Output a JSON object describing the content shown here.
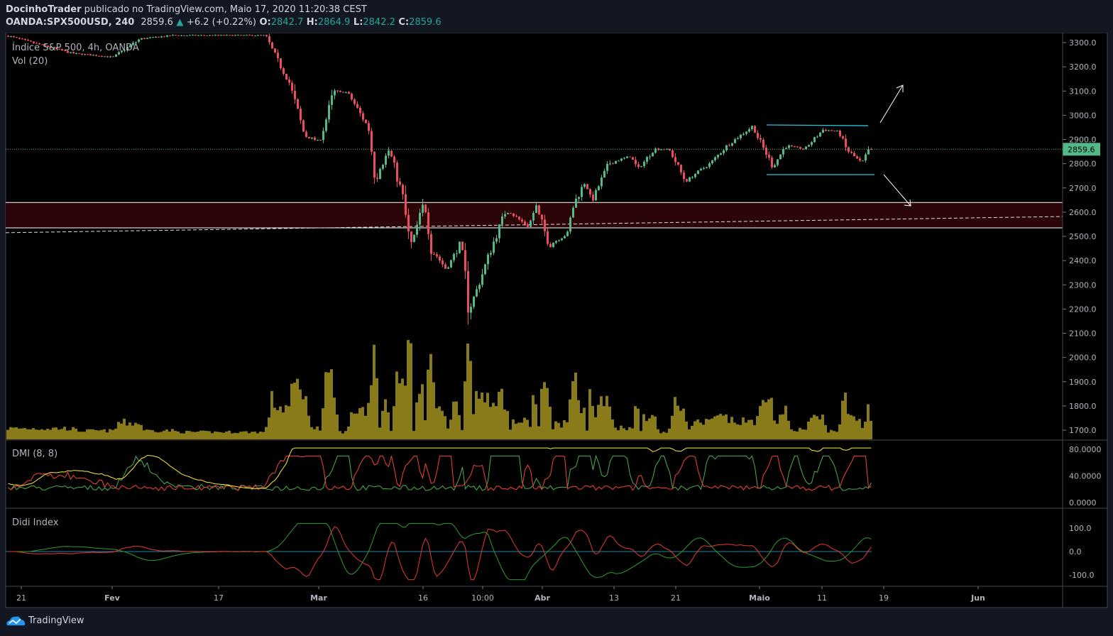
{
  "header": {
    "author": "DocinhoTrader",
    "published": "publicado no TradingView.com, Maio 17, 2020 11:20:38 CEST",
    "symbol": "OANDA:SPX500USD, 240",
    "last": "2859.6",
    "change": "+6.2 (+0.22%)",
    "o_label": "O:",
    "o": "2842.7",
    "h_label": "H:",
    "h": "2864.9",
    "l_label": "L:",
    "l": "2842.2",
    "c_label": "C:",
    "c": "2859.6"
  },
  "brand": "TradingView",
  "colors": {
    "up": "#53b987",
    "down": "#eb4d5c",
    "volume": "#8a7b1a",
    "plus_di": "#4caf50",
    "minus_di": "#f44336",
    "adx": "#ffeb3b",
    "didi_fast": "#e53935",
    "didi_slow": "#2e9e2e",
    "didi_base": "#2a7fa6",
    "channel": "#26c6da",
    "zone": "#2b0508"
  },
  "chart_data": [
    {
      "type": "candlestick",
      "title": "Índice S&P 500, 4h, OANDA",
      "volume_label": "Vol (20)",
      "y_ticks": [
        3300,
        3200,
        3100,
        3000,
        2900,
        2800,
        2700,
        2600,
        2500,
        2400,
        2300,
        2200,
        2100,
        2000,
        1900,
        1800,
        1700
      ],
      "ylim": [
        1690,
        3340
      ],
      "last_price": 2859.6,
      "last_price_label": "2859.6",
      "x_ticks": [
        "21",
        "Fev",
        "17",
        "Mar",
        "16",
        "10:00",
        "Abr",
        "13",
        "21",
        "Maio",
        "11",
        "19",
        "Jun"
      ],
      "close_path": [
        [
          "2020-01-19",
          3330
        ],
        [
          "2020-01-27",
          3256
        ],
        [
          "2020-02-01",
          3240
        ],
        [
          "2020-02-05",
          3315
        ],
        [
          "2020-02-10",
          3330
        ],
        [
          "2020-02-23",
          3330
        ],
        [
          "2020-02-24",
          3256
        ],
        [
          "2020-02-26",
          3139
        ],
        [
          "2020-02-28",
          2919
        ],
        [
          "2020-03-01",
          2890
        ],
        [
          "2020-03-03",
          3095
        ],
        [
          "2020-03-05",
          3095
        ],
        [
          "2020-03-08",
          2948
        ],
        [
          "2020-03-09",
          2743
        ],
        [
          "2020-03-11",
          2860
        ],
        [
          "2020-03-13",
          2655
        ],
        [
          "2020-03-14",
          2450
        ],
        [
          "2020-03-16",
          2640
        ],
        [
          "2020-03-17",
          2450
        ],
        [
          "2020-03-19",
          2362
        ],
        [
          "2020-03-21",
          2480
        ],
        [
          "2020-03-22",
          2201
        ],
        [
          "2020-03-23",
          2274
        ],
        [
          "2020-03-25",
          2450
        ],
        [
          "2020-03-27",
          2611
        ],
        [
          "2020-03-30",
          2540
        ],
        [
          "2020-03-31",
          2626
        ],
        [
          "2020-04-02",
          2465
        ],
        [
          "2020-04-05",
          2510
        ],
        [
          "2020-04-06",
          2626
        ],
        [
          "2020-04-08",
          2729
        ],
        [
          "2020-04-09",
          2640
        ],
        [
          "2020-04-12",
          2802
        ],
        [
          "2020-04-15",
          2831
        ],
        [
          "2020-04-16",
          2775
        ],
        [
          "2020-04-18",
          2860
        ],
        [
          "2020-04-20",
          2860
        ],
        [
          "2020-04-22",
          2729
        ],
        [
          "2020-04-25",
          2802
        ],
        [
          "2020-04-27",
          2875
        ],
        [
          "2020-04-30",
          2954
        ],
        [
          "2020-05-03",
          2787
        ],
        [
          "2020-05-05",
          2875
        ],
        [
          "2020-05-08",
          2860
        ],
        [
          "2020-05-11",
          2940
        ],
        [
          "2020-05-13",
          2934
        ],
        [
          "2020-05-14",
          2860
        ],
        [
          "2020-05-16",
          2802
        ],
        [
          "2020-05-17",
          2860
        ]
      ],
      "support_zone": [
        2535,
        2640
      ],
      "trendline": [
        [
          "2020-01-19",
          2515
        ],
        [
          "2020-06-12",
          2582
        ]
      ],
      "channel_upper": [
        [
          "2020-05-02",
          2960
        ],
        [
          "2020-05-18",
          2957
        ]
      ],
      "channel_lower": [
        [
          "2020-05-02",
          2755
        ],
        [
          "2020-05-18",
          2755
        ]
      ],
      "arrows": [
        "up",
        "down"
      ]
    },
    {
      "type": "line",
      "title": "DMI (8, 8)",
      "y_ticks": [
        "80.0000",
        "40.0000",
        "0.0000"
      ],
      "ylim": [
        0,
        85
      ],
      "series": [
        "+DI",
        "-DI",
        "ADX"
      ]
    },
    {
      "type": "line",
      "title": "Didi Index",
      "y_ticks": [
        "100.0",
        "0.0",
        "-100.0"
      ],
      "ylim": [
        -130,
        130
      ]
    }
  ]
}
